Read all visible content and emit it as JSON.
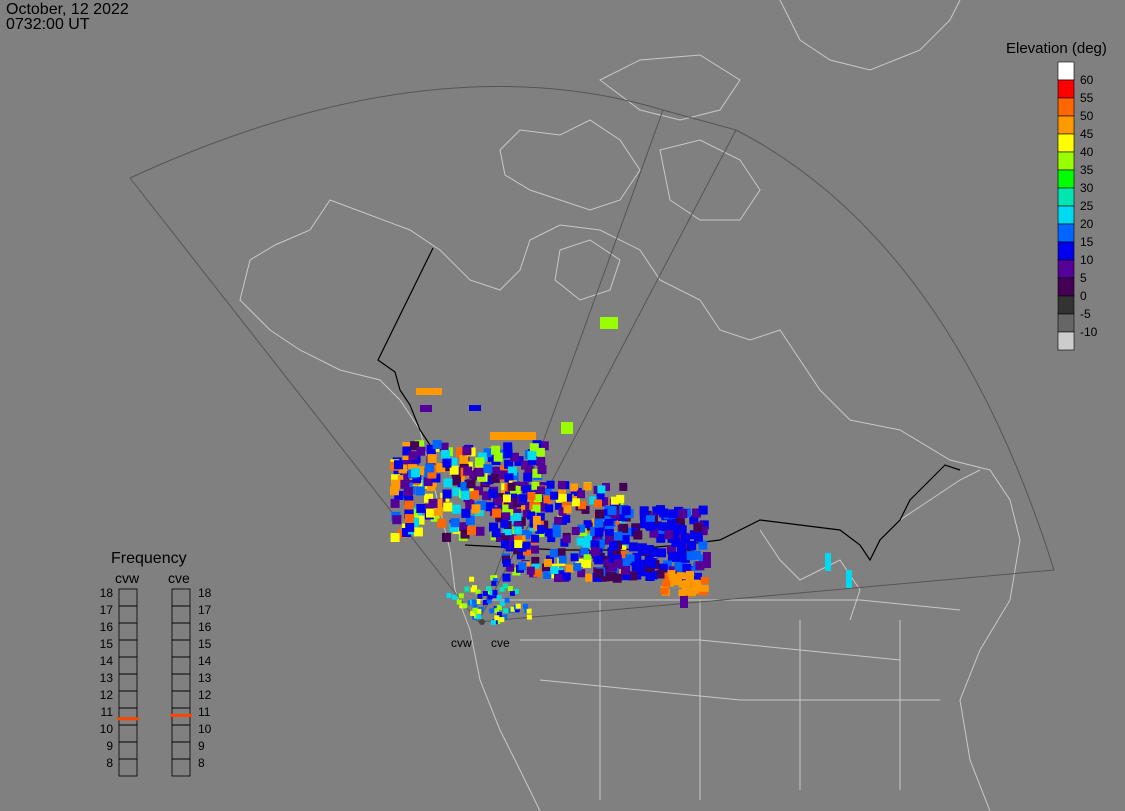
{
  "header": {
    "date": "October, 12 2022",
    "time": "0732:00 UT"
  },
  "elevation_legend": {
    "title": "Elevation (deg)",
    "levels": [
      {
        "label": "60",
        "color": "#ffffff"
      },
      {
        "label": "55",
        "color": "#ff0000"
      },
      {
        "label": "50",
        "color": "#ff6600"
      },
      {
        "label": "45",
        "color": "#ff9900"
      },
      {
        "label": "40",
        "color": "#ffff00"
      },
      {
        "label": "35",
        "color": "#99ff00"
      },
      {
        "label": "30",
        "color": "#00ff00"
      },
      {
        "label": "25",
        "color": "#00e6b3"
      },
      {
        "label": "20",
        "color": "#00d9f2"
      },
      {
        "label": "15",
        "color": "#0066ff"
      },
      {
        "label": "10",
        "color": "#0000ee"
      },
      {
        "label": "5",
        "color": "#550099"
      },
      {
        "label": "0",
        "color": "#440055"
      },
      {
        "label": "-5",
        "color": "#333333"
      },
      {
        "label": "-10",
        "color": "#666666"
      },
      {
        "label": "",
        "color": "#cccccc"
      }
    ]
  },
  "frequency_legend": {
    "title": "Frequency",
    "radars": [
      "cvw",
      "cve"
    ],
    "ticks": [
      "18",
      "17",
      "16",
      "15",
      "14",
      "13",
      "12",
      "11",
      "10",
      "9",
      "8"
    ],
    "marker_color": "#ff4400",
    "cvw_frequency_mhz": 10.6,
    "cve_frequency_mhz": 10.8
  },
  "radar_labels": [
    "cvw",
    "cve"
  ],
  "map": {
    "background": "#808080",
    "coastline_color": "#c8c8c8",
    "border_color": "#000000",
    "fov_color": "#555555"
  }
}
